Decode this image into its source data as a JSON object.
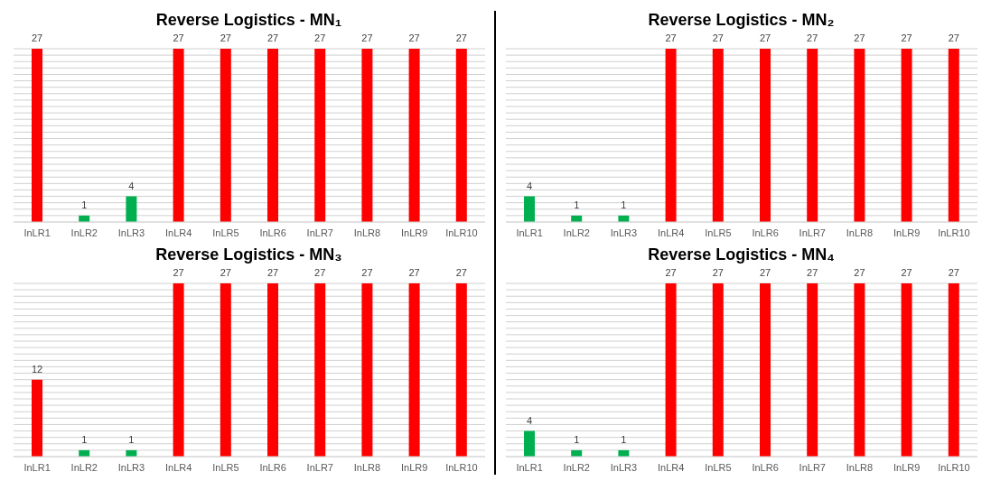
{
  "chart_data": [
    {
      "type": "bar",
      "title": "Reverse Logistics - MN₁",
      "categories": [
        "InLR1",
        "InLR2",
        "InLR3",
        "InLR4",
        "InLR5",
        "InLR6",
        "InLR7",
        "InLR8",
        "InLR9",
        "InLR10"
      ],
      "values": [
        27,
        1,
        4,
        27,
        27,
        27,
        27,
        27,
        27,
        27
      ],
      "colors": [
        "#ff0000",
        "#00b050",
        "#00b050",
        "#ff0000",
        "#ff0000",
        "#ff0000",
        "#ff0000",
        "#ff0000",
        "#ff0000",
        "#ff0000"
      ],
      "ylim": [
        0,
        27
      ],
      "yticks": [
        {
          "value": 0,
          "label": null
        },
        {
          "value": 1,
          "label": null
        },
        {
          "value": 2,
          "label": null
        },
        {
          "value": 3,
          "label": null
        },
        {
          "value": 4,
          "label": null
        },
        {
          "value": 5,
          "label": null
        },
        {
          "value": 6,
          "label": null
        },
        {
          "value": 7,
          "label": null
        },
        {
          "value": 8,
          "label": null
        },
        {
          "value": 9,
          "label": null
        },
        {
          "value": 10,
          "label": null
        },
        {
          "value": 11,
          "label": null
        },
        {
          "value": 12,
          "label": null
        },
        {
          "value": 13,
          "label": null
        },
        {
          "value": 14,
          "label": null
        },
        {
          "value": 15,
          "label": null
        },
        {
          "value": 16,
          "label": null
        },
        {
          "value": 17,
          "label": null
        },
        {
          "value": 18,
          "label": null
        },
        {
          "value": 19,
          "label": null
        },
        {
          "value": 20,
          "label": null
        },
        {
          "value": 21,
          "label": null
        },
        {
          "value": 22,
          "label": null
        },
        {
          "value": 23,
          "label": null
        },
        {
          "value": 24,
          "label": null
        },
        {
          "value": 25,
          "label": null
        },
        {
          "value": 26,
          "label": null
        },
        {
          "value": 27,
          "label": null
        }
      ],
      "grid": "y",
      "data_labels": true,
      "tick_labels": "x"
    },
    {
      "type": "bar",
      "title": "Reverse Logistics - MN₂",
      "categories": [
        "InLR1",
        "InLR2",
        "InLR3",
        "InLR4",
        "InLR5",
        "InLR6",
        "InLR7",
        "InLR8",
        "InLR9",
        "InLR10"
      ],
      "values": [
        4,
        1,
        1,
        27,
        27,
        27,
        27,
        27,
        27,
        27
      ],
      "colors": [
        "#00b050",
        "#00b050",
        "#00b050",
        "#ff0000",
        "#ff0000",
        "#ff0000",
        "#ff0000",
        "#ff0000",
        "#ff0000",
        "#ff0000"
      ],
      "ylim": [
        0,
        27
      ],
      "yticks": [
        {
          "value": 0,
          "label": null
        },
        {
          "value": 1,
          "label": null
        },
        {
          "value": 2,
          "label": null
        },
        {
          "value": 3,
          "label": null
        },
        {
          "value": 4,
          "label": null
        },
        {
          "value": 5,
          "label": null
        },
        {
          "value": 6,
          "label": null
        },
        {
          "value": 7,
          "label": null
        },
        {
          "value": 8,
          "label": null
        },
        {
          "value": 9,
          "label": null
        },
        {
          "value": 10,
          "label": null
        },
        {
          "value": 11,
          "label": null
        },
        {
          "value": 12,
          "label": null
        },
        {
          "value": 13,
          "label": null
        },
        {
          "value": 14,
          "label": null
        },
        {
          "value": 15,
          "label": null
        },
        {
          "value": 16,
          "label": null
        },
        {
          "value": 17,
          "label": null
        },
        {
          "value": 18,
          "label": null
        },
        {
          "value": 19,
          "label": null
        },
        {
          "value": 20,
          "label": null
        },
        {
          "value": 21,
          "label": null
        },
        {
          "value": 22,
          "label": null
        },
        {
          "value": 23,
          "label": null
        },
        {
          "value": 24,
          "label": null
        },
        {
          "value": 25,
          "label": null
        },
        {
          "value": 26,
          "label": null
        },
        {
          "value": 27,
          "label": null
        }
      ],
      "grid": "y",
      "data_labels": true,
      "tick_labels": "x"
    },
    {
      "type": "bar",
      "title": "Reverse Logistics - MN₃",
      "categories": [
        "InLR1",
        "InLR2",
        "InLR3",
        "InLR4",
        "InLR5",
        "InLR6",
        "InLR7",
        "InLR8",
        "InLR9",
        "InLR10"
      ],
      "values": [
        12,
        1,
        1,
        27,
        27,
        27,
        27,
        27,
        27,
        27
      ],
      "colors": [
        "#ff0000",
        "#00b050",
        "#00b050",
        "#ff0000",
        "#ff0000",
        "#ff0000",
        "#ff0000",
        "#ff0000",
        "#ff0000",
        "#ff0000"
      ],
      "ylim": [
        0,
        27
      ],
      "yticks": [
        {
          "value": 0,
          "label": null
        },
        {
          "value": 1,
          "label": null
        },
        {
          "value": 2,
          "label": null
        },
        {
          "value": 3,
          "label": null
        },
        {
          "value": 4,
          "label": null
        },
        {
          "value": 5,
          "label": null
        },
        {
          "value": 6,
          "label": null
        },
        {
          "value": 7,
          "label": null
        },
        {
          "value": 8,
          "label": null
        },
        {
          "value": 9,
          "label": null
        },
        {
          "value": 10,
          "label": null
        },
        {
          "value": 11,
          "label": null
        },
        {
          "value": 12,
          "label": null
        },
        {
          "value": 13,
          "label": null
        },
        {
          "value": 14,
          "label": null
        },
        {
          "value": 15,
          "label": null
        },
        {
          "value": 16,
          "label": null
        },
        {
          "value": 17,
          "label": null
        },
        {
          "value": 18,
          "label": null
        },
        {
          "value": 19,
          "label": null
        },
        {
          "value": 20,
          "label": null
        },
        {
          "value": 21,
          "label": null
        },
        {
          "value": 22,
          "label": null
        },
        {
          "value": 23,
          "label": null
        },
        {
          "value": 24,
          "label": null
        },
        {
          "value": 25,
          "label": null
        },
        {
          "value": 26,
          "label": null
        },
        {
          "value": 27,
          "label": null
        }
      ],
      "grid": "y",
      "data_labels": true,
      "tick_labels": "x"
    },
    {
      "type": "bar",
      "title": "Reverse Logistics - MN₄",
      "categories": [
        "InLR1",
        "InLR2",
        "InLR3",
        "InLR4",
        "InLR5",
        "InLR6",
        "InLR7",
        "InLR8",
        "InLR9",
        "InLR10"
      ],
      "values": [
        4,
        1,
        1,
        27,
        27,
        27,
        27,
        27,
        27,
        27
      ],
      "colors": [
        "#00b050",
        "#00b050",
        "#00b050",
        "#ff0000",
        "#ff0000",
        "#ff0000",
        "#ff0000",
        "#ff0000",
        "#ff0000",
        "#ff0000"
      ],
      "ylim": [
        0,
        27
      ],
      "yticks": [
        {
          "value": 0,
          "label": null
        },
        {
          "value": 1,
          "label": null
        },
        {
          "value": 2,
          "label": null
        },
        {
          "value": 3,
          "label": null
        },
        {
          "value": 4,
          "label": null
        },
        {
          "value": 5,
          "label": null
        },
        {
          "value": 6,
          "label": null
        },
        {
          "value": 7,
          "label": null
        },
        {
          "value": 8,
          "label": null
        },
        {
          "value": 9,
          "label": null
        },
        {
          "value": 10,
          "label": null
        },
        {
          "value": 11,
          "label": null
        },
        {
          "value": 12,
          "label": null
        },
        {
          "value": 13,
          "label": null
        },
        {
          "value": 14,
          "label": null
        },
        {
          "value": 15,
          "label": null
        },
        {
          "value": 16,
          "label": null
        },
        {
          "value": 17,
          "label": null
        },
        {
          "value": 18,
          "label": null
        },
        {
          "value": 19,
          "label": null
        },
        {
          "value": 20,
          "label": null
        },
        {
          "value": 21,
          "label": null
        },
        {
          "value": 22,
          "label": null
        },
        {
          "value": 23,
          "label": null
        },
        {
          "value": 24,
          "label": null
        },
        {
          "value": 25,
          "label": null
        },
        {
          "value": 26,
          "label": null
        },
        {
          "value": 27,
          "label": null
        }
      ],
      "grid": "y",
      "data_labels": true,
      "tick_labels": "x"
    }
  ]
}
